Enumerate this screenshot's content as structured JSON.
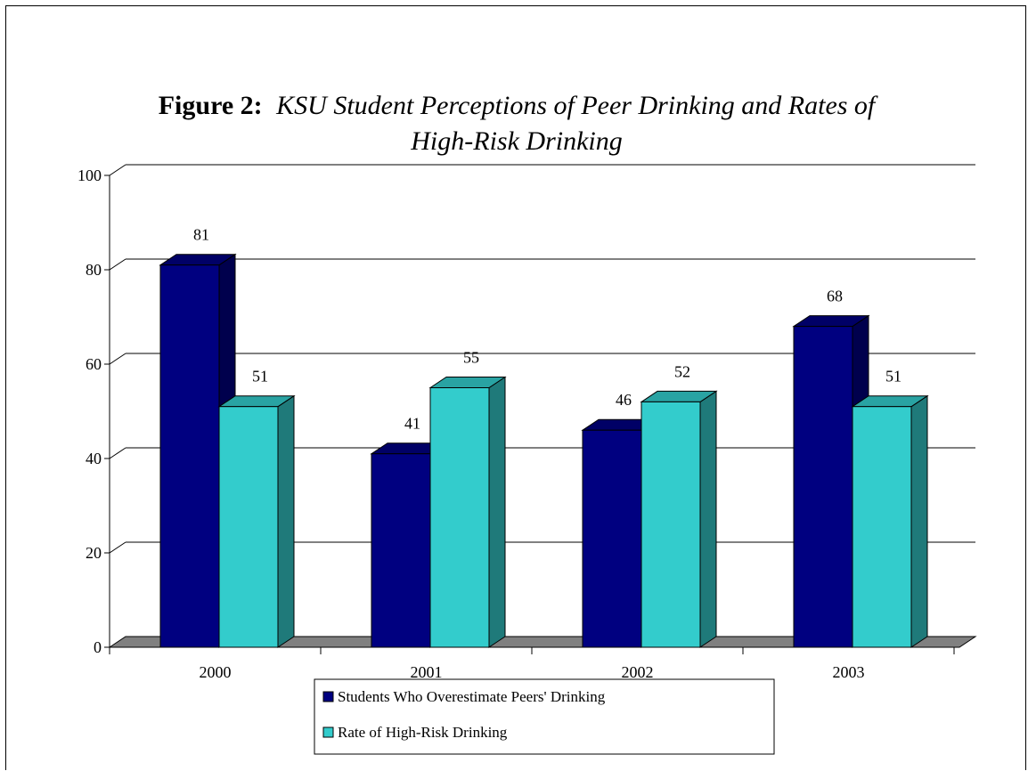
{
  "chart_data": {
    "type": "bar",
    "title": {
      "prefix": "Figure 2:",
      "line1": "KSU Student Perceptions of Peer Drinking and Rates of",
      "line2": "High-Risk Drinking"
    },
    "categories": [
      "2000",
      "2001",
      "2002",
      "2003"
    ],
    "series": [
      {
        "name": "Students Who Overestimate Peers' Drinking",
        "values": [
          81,
          41,
          46,
          68
        ],
        "labels": [
          "81",
          "41",
          "46",
          "68"
        ],
        "color": "#000080",
        "side_color": "#00004d",
        "top_color": "#000066"
      },
      {
        "name": "Rate of High-Risk Drinking",
        "values": [
          51,
          55,
          52,
          51
        ],
        "labels": [
          "51",
          "55",
          "52",
          "51"
        ],
        "color": "#33cccc",
        "side_color": "#1f7a7a",
        "top_color": "#29a3a3"
      }
    ],
    "yticks": [
      "0",
      "20",
      "40",
      "60",
      "80",
      "100"
    ],
    "ylim": [
      0,
      100
    ],
    "grid": true,
    "floor_color": "#808080",
    "legend_position": "bottom-center",
    "xlabel": "",
    "ylabel": ""
  }
}
